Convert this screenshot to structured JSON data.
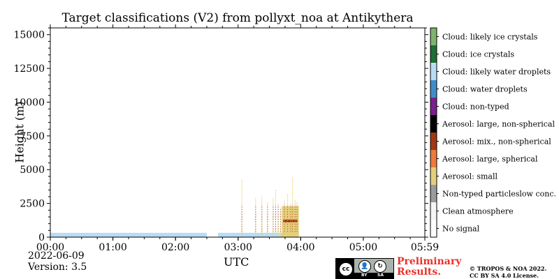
{
  "chart_data": {
    "type": "heatmap",
    "title": "Target classifications (V2) from pollyxt_noa at Antikythera",
    "xlabel": "UTC",
    "ylabel": "Height (m)",
    "x_range_hours": [
      0,
      5.983
    ],
    "ylim": [
      0,
      15500
    ],
    "x_tick_hours": [
      0,
      1,
      2,
      3,
      4,
      5,
      5.983
    ],
    "x_tick_labels": [
      "00:00",
      "01:00",
      "02:00",
      "03:00",
      "04:00",
      "05:00",
      "05:59"
    ],
    "y_ticks": [
      0,
      2500,
      5000,
      7500,
      10000,
      12500,
      15000
    ],
    "y_tick_labels": [
      "0",
      "2500",
      "5000",
      "7500",
      "10000",
      "12500",
      "15000"
    ],
    "grid": false,
    "legend_position": "right colorbar",
    "classes": [
      {
        "label": "No signal",
        "color": "#ffffff"
      },
      {
        "label": "Clean atmosphere",
        "color": "#f5f5f5"
      },
      {
        "label": "Non-typed particleslow conc.",
        "color": "#9b9b9b"
      },
      {
        "label": "Aerosol: small",
        "color": "#e3cf7c"
      },
      {
        "label": "Aerosol: large, spherical",
        "color": "#ee7a3b"
      },
      {
        "label": "Aerosol: mix., non-spherical",
        "color": "#a33612"
      },
      {
        "label": "Aerosol: large, non-spherical",
        "color": "#000000"
      },
      {
        "label": "Cloud: non-typed",
        "color": "#7b1f8c"
      },
      {
        "label": "Cloud: water droplets",
        "color": "#3f8dc8"
      },
      {
        "label": "Cloud: likely water droplets",
        "color": "#b8dcf3"
      },
      {
        "label": "Cloud: ice crystals",
        "color": "#1d6e33"
      },
      {
        "label": "Cloud: likely ice crystals",
        "color": "#7fb36c"
      }
    ],
    "regions": [
      {
        "class": "Cloud: likely water droplets",
        "x0": 0.0,
        "x1": 2.5,
        "y0": 0,
        "y1": 320
      },
      {
        "class": "Cloud: likely water droplets",
        "x0": 2.68,
        "x1": 3.97,
        "y0": 0,
        "y1": 320
      },
      {
        "class": "Aerosol: small",
        "x0": 3.7,
        "x1": 3.97,
        "y0": 0,
        "y1": 2300
      },
      {
        "class": "Aerosol: mix., non-spherical",
        "x0": 3.72,
        "x1": 3.95,
        "y0": 1100,
        "y1": 1300
      }
    ],
    "profiles": [
      {
        "x": 3.06,
        "top": 4300
      },
      {
        "x": 3.28,
        "top": 2900
      },
      {
        "x": 3.38,
        "top": 3000
      },
      {
        "x": 3.47,
        "top": 2600
      },
      {
        "x": 3.56,
        "top": 2900
      },
      {
        "x": 3.6,
        "top": 3500
      },
      {
        "x": 3.64,
        "top": 2400
      },
      {
        "x": 3.68,
        "top": 2200
      },
      {
        "x": 3.74,
        "top": 2700
      },
      {
        "x": 3.79,
        "top": 3200
      },
      {
        "x": 3.84,
        "top": 2500
      },
      {
        "x": 3.87,
        "top": 4400
      },
      {
        "x": 3.91,
        "top": 2800
      },
      {
        "x": 3.94,
        "top": 2600
      }
    ]
  },
  "footer": {
    "date": "2022-06-09",
    "version": "Version: 3.5",
    "preliminary_line1": "Preliminary",
    "preliminary_line2": "Results.",
    "copyright_line1": "© TROPOS & NOA 2022.",
    "copyright_line2": "CC BY SA 4.0 License.",
    "cc_logo_text": "cc",
    "cc_by": "BY",
    "cc_sa": "SA"
  }
}
